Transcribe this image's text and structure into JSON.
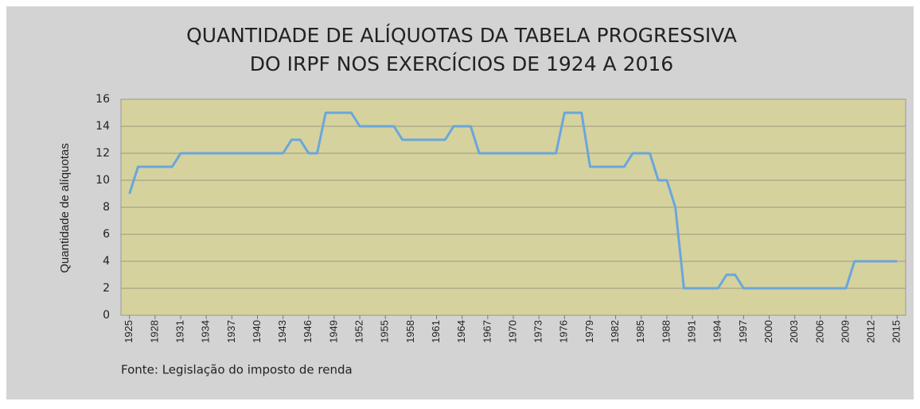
{
  "chart_data": {
    "type": "line",
    "title": [
      "QUANTIDADE DE ALÍQUOTAS DA TABELA PROGRESSIVA",
      "DO IRPF NOS EXERCÍCIOS DE 1924 A 2016"
    ],
    "y_label": "Quantidade de alíquotas",
    "source": "Fonte: Legislação do imposto de renda",
    "x": [
      1925,
      1926,
      1927,
      1928,
      1929,
      1930,
      1931,
      1932,
      1933,
      1934,
      1935,
      1936,
      1937,
      1938,
      1939,
      1940,
      1941,
      1942,
      1943,
      1944,
      1945,
      1946,
      1947,
      1948,
      1949,
      1950,
      1951,
      1952,
      1953,
      1954,
      1955,
      1956,
      1957,
      1958,
      1959,
      1960,
      1961,
      1962,
      1963,
      1964,
      1965,
      1966,
      1967,
      1968,
      1969,
      1970,
      1971,
      1972,
      1973,
      1974,
      1975,
      1976,
      1977,
      1978,
      1979,
      1980,
      1981,
      1982,
      1983,
      1984,
      1985,
      1986,
      1987,
      1988,
      1989,
      1990,
      1991,
      1992,
      1993,
      1994,
      1995,
      1996,
      1997,
      1998,
      1999,
      2000,
      2001,
      2002,
      2003,
      2004,
      2005,
      2006,
      2007,
      2008,
      2009,
      2010,
      2011,
      2012,
      2013,
      2014,
      2015
    ],
    "series": [
      {
        "name": "Quantidade de alíquotas",
        "color": "#6aa6db",
        "values": [
          9,
          11,
          11,
          11,
          11,
          11,
          12,
          12,
          12,
          12,
          12,
          12,
          12,
          12,
          12,
          12,
          12,
          12,
          12,
          13,
          13,
          12,
          12,
          15,
          15,
          15,
          15,
          14,
          14,
          14,
          14,
          14,
          13,
          13,
          13,
          13,
          13,
          13,
          14,
          14,
          14,
          12,
          12,
          12,
          12,
          12,
          12,
          12,
          12,
          12,
          12,
          15,
          15,
          15,
          11,
          11,
          11,
          11,
          11,
          12,
          12,
          12,
          10,
          10,
          8,
          2,
          2,
          2,
          2,
          2,
          3,
          3,
          2,
          2,
          2,
          2,
          2,
          2,
          2,
          2,
          2,
          2,
          2,
          2,
          2,
          4,
          4,
          4,
          4,
          4,
          4
        ]
      }
    ],
    "xlim": [
      1924,
      2016
    ],
    "xticks": [
      1925,
      1928,
      1931,
      1934,
      1937,
      1940,
      1943,
      1946,
      1949,
      1952,
      1955,
      1958,
      1961,
      1964,
      1967,
      1970,
      1973,
      1976,
      1979,
      1982,
      1985,
      1988,
      1991,
      1994,
      1997,
      2000,
      2003,
      2006,
      2009,
      2012,
      2015
    ],
    "ylim": [
      0,
      16
    ],
    "yticks": [
      0,
      2,
      4,
      6,
      8,
      10,
      12,
      14,
      16
    ],
    "grid": true,
    "plot_color": "#d5d29e"
  }
}
